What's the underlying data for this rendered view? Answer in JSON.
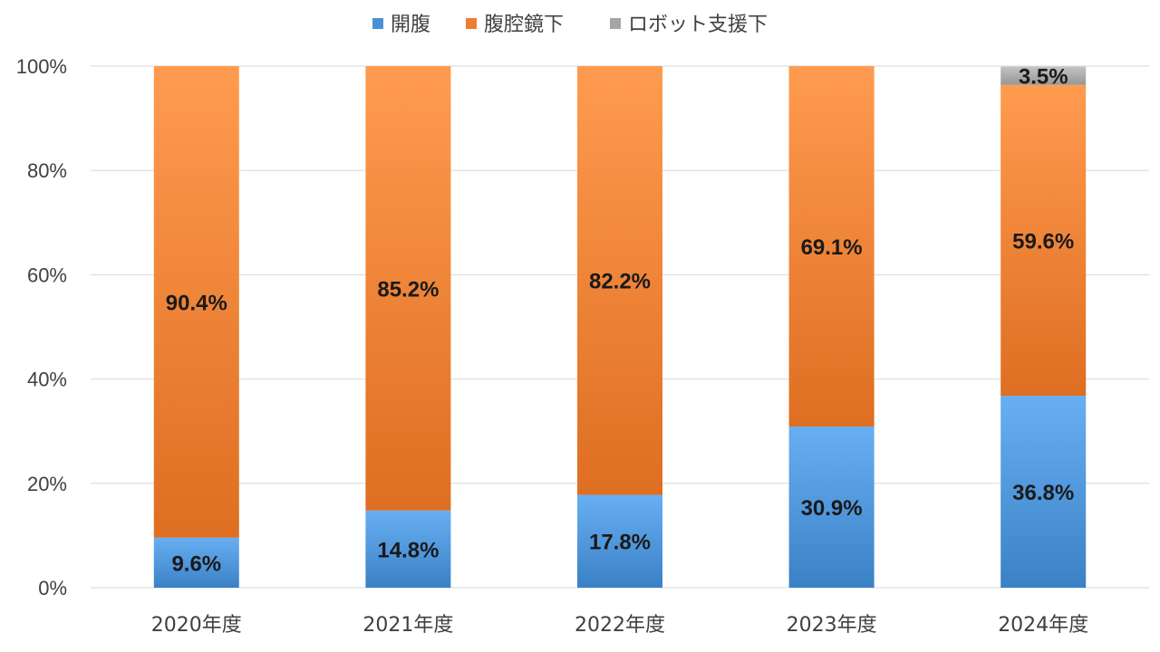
{
  "chart_data": {
    "type": "bar",
    "stacked": true,
    "categories": [
      "2020年度",
      "2021年度",
      "2022年度",
      "2023年度",
      "2024年度"
    ],
    "series": [
      {
        "name": "開腹",
        "color": "#4a90d4",
        "values": [
          9.6,
          14.8,
          17.8,
          30.9,
          36.8
        ]
      },
      {
        "name": "腹腔鏡下",
        "color": "#ed7d31",
        "values": [
          90.4,
          85.2,
          82.2,
          69.1,
          59.6
        ]
      },
      {
        "name": "ロボット支援下",
        "color": "#a5a5a5",
        "values": [
          0,
          0,
          0,
          0,
          3.5
        ]
      }
    ],
    "data_labels": [
      [
        "9.6%",
        "14.8%",
        "17.8%",
        "30.9%",
        "36.8%"
      ],
      [
        "90.4%",
        "85.2%",
        "82.2%",
        "69.1%",
        "59.6%"
      ],
      [
        "",
        "",
        "",
        "",
        "3.5%"
      ]
    ],
    "yticks": [
      "0%",
      "20%",
      "40%",
      "60%",
      "80%",
      "100%"
    ],
    "ylim": [
      0,
      100
    ],
    "grid": true,
    "legend_position": "top"
  }
}
